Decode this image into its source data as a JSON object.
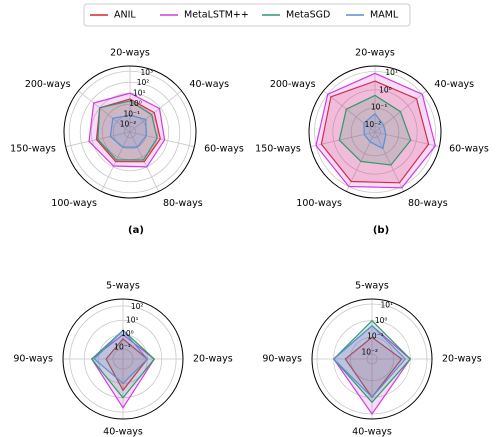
{
  "chart_data": [
    {
      "type": "radar",
      "log": true,
      "caption": "(a)",
      "categories": [
        "20-ways",
        "40-ways",
        "60-ways",
        "80-ways",
        "100-ways",
        "150-ways",
        "200-ways"
      ],
      "rlim": [
        0.003,
        3000
      ],
      "rticks": [
        {
          "value": 0.01,
          "label": "10⁻²"
        },
        {
          "value": 0.1,
          "label": "10⁻¹"
        },
        {
          "value": 1,
          "label": "10⁰"
        },
        {
          "value": 10,
          "label": "10¹"
        },
        {
          "value": 100,
          "label": "10²"
        },
        {
          "value": 1000,
          "label": "10³"
        }
      ],
      "series": [
        {
          "name": "ANIL",
          "color": "#d62728",
          "values": [
            3,
            2,
            2,
            3,
            3,
            4,
            10
          ]
        },
        {
          "name": "MetaLSTM++",
          "color": "#d23ce0",
          "values": [
            10,
            8,
            5,
            10,
            8,
            20,
            50
          ]
        },
        {
          "name": "MetaSGD",
          "color": "#2e9a6a",
          "values": [
            2,
            1,
            1,
            2,
            2,
            3,
            10
          ]
        },
        {
          "name": "MAML",
          "color": "#5b8fd6",
          "values": [
            0.1,
            0.2,
            0.1,
            0.1,
            0.1,
            0.2,
            0.3
          ]
        }
      ]
    },
    {
      "type": "radar",
      "log": true,
      "caption": "(b)",
      "categories": [
        "20-ways",
        "40-ways",
        "60-ways",
        "80-ways",
        "100-ways",
        "150-ways",
        "200-ways"
      ],
      "rlim": [
        0.005,
        20
      ],
      "rticks": [
        {
          "value": 0.01,
          "label": "10⁻²"
        },
        {
          "value": 0.1,
          "label": "10⁻¹"
        },
        {
          "value": 1,
          "label": "10⁰"
        },
        {
          "value": 10,
          "label": "10¹"
        }
      ],
      "series": [
        {
          "name": "ANIL",
          "color": "#d62728",
          "values": [
            3,
            4,
            5,
            6,
            5,
            5,
            6
          ]
        },
        {
          "name": "MetaLSTM++",
          "color": "#d23ce0",
          "values": [
            8,
            10,
            12,
            12,
            10,
            10,
            10
          ]
        },
        {
          "name": "MetaSGD",
          "color": "#2e9a6a",
          "values": [
            0.5,
            0.3,
            0.5,
            0.5,
            0.3,
            0.5,
            0.5
          ]
        },
        {
          "name": "MAML",
          "color": "#5b8fd6",
          "values": [
            0.05,
            0.02,
            0.02,
            0.05,
            0.02,
            0.02,
            0.03
          ]
        }
      ]
    },
    {
      "type": "radar",
      "log": true,
      "categories": [
        "5-ways",
        "20-ways",
        "40-ways",
        "90-ways"
      ],
      "rlim": [
        0.02,
        300
      ],
      "rticks": [
        {
          "value": 0.1,
          "label": "10⁻¹"
        },
        {
          "value": 1,
          "label": "10⁰"
        },
        {
          "value": 10,
          "label": "10¹"
        },
        {
          "value": 100,
          "label": "10²"
        }
      ],
      "series": [
        {
          "name": "ANIL",
          "color": "#d62728",
          "values": [
            0.5,
            1,
            3,
            0.3
          ]
        },
        {
          "name": "MetaLSTM++",
          "color": "#d23ce0",
          "values": [
            1,
            3,
            50,
            3
          ]
        },
        {
          "name": "MetaSGD",
          "color": "#2e9a6a",
          "values": [
            2,
            3,
            10,
            3
          ]
        },
        {
          "name": "MAML",
          "color": "#5b8fd6",
          "values": [
            2,
            1,
            1,
            2
          ]
        }
      ]
    },
    {
      "type": "radar",
      "log": true,
      "categories": [
        "5-ways",
        "20-ways",
        "40-ways",
        "90-ways"
      ],
      "rlim": [
        0.005,
        20
      ],
      "rticks": [
        {
          "value": 0.01,
          "label": "10⁻²"
        },
        {
          "value": 0.1,
          "label": "10⁻¹"
        },
        {
          "value": 1,
          "label": "10⁰"
        },
        {
          "value": 10,
          "label": "10¹"
        }
      ],
      "series": [
        {
          "name": "ANIL",
          "color": "#d62728",
          "values": [
            0.1,
            0.3,
            1,
            0.2
          ]
        },
        {
          "name": "MetaLSTM++",
          "color": "#d23ce0",
          "values": [
            0.5,
            1,
            10,
            1
          ]
        },
        {
          "name": "MetaSGD",
          "color": "#2e9a6a",
          "values": [
            1,
            1,
            2,
            1
          ]
        },
        {
          "name": "MAML",
          "color": "#5b8fd6",
          "values": [
            0.5,
            0.5,
            1,
            1
          ]
        }
      ]
    }
  ]
}
